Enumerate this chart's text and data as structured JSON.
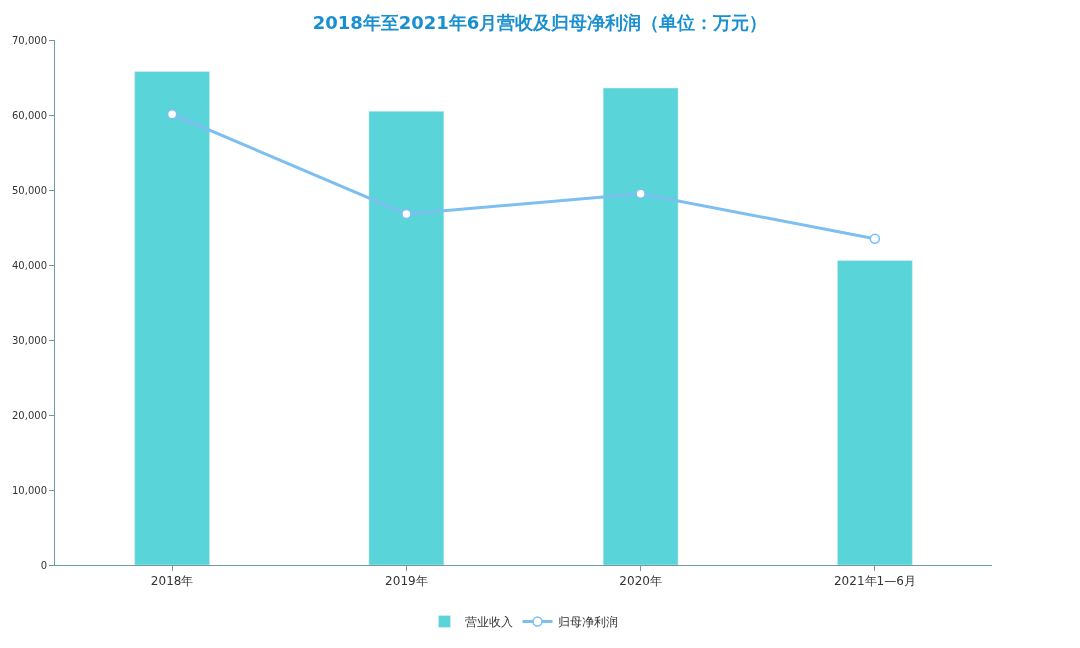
{
  "chart_data": {
    "type": "bar",
    "title": "2018年至2021年6月营收及归母净利润（单位：万元）",
    "categories": [
      "2018年",
      "2019年",
      "2020年",
      "2021年1—6月"
    ],
    "series": [
      {
        "name": "营业收入",
        "color": "#59d4d8",
        "values": [
          65800,
          60500,
          63600,
          40600
        ]
      },
      {
        "name": "归母净利润",
        "type": "line",
        "color": "#7cbff0",
        "marker": "circle",
        "values": [
          60100,
          46800,
          49500,
          43500
        ]
      }
    ],
    "ylim": [
      0,
      70000
    ],
    "yticks": [
      {
        "value": 0,
        "label": "0"
      },
      {
        "value": 10000,
        "label": "10,000"
      },
      {
        "value": 20000,
        "label": "20,000"
      },
      {
        "value": 30000,
        "label": "30,000"
      },
      {
        "value": 40000,
        "label": "40,000"
      },
      {
        "value": 50000,
        "label": "50,000"
      },
      {
        "value": 60000,
        "label": "60,000"
      },
      {
        "value": 70000,
        "label": "70,000"
      }
    ],
    "grid": false,
    "legend": "bottom"
  }
}
